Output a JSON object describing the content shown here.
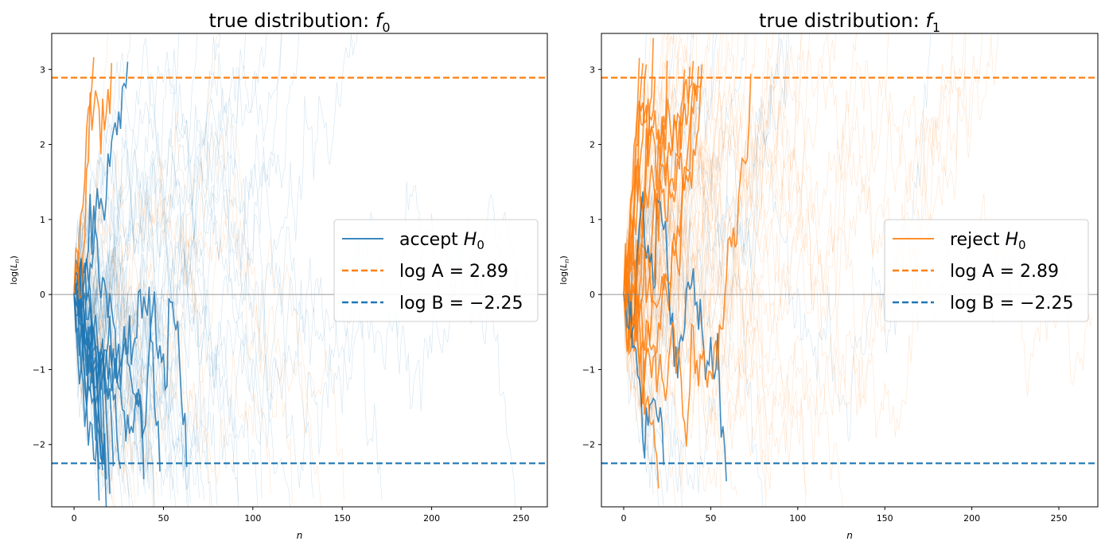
{
  "chart_data": [
    {
      "type": "line",
      "title": "true distribution: f0",
      "title_text": "true distribution: ",
      "title_math": "f",
      "title_sub": "0",
      "xlabel": "n",
      "ylabel": "log(L_n)",
      "xlim": [
        -12.5,
        264.7
      ],
      "ylim": [
        -2.83,
        3.48
      ],
      "xticks": [
        0,
        50,
        100,
        150,
        200,
        250
      ],
      "yticks": [
        -2,
        -1,
        0,
        1,
        2,
        3
      ],
      "grid": false,
      "legend_placement": "center-right",
      "legend": [
        {
          "label": "accept H0",
          "text": "accept ",
          "math": "H",
          "sub": "0",
          "style": "solid",
          "color": "#1f77b4"
        },
        {
          "label": "log A = 2.89",
          "text": "log A = 2.89",
          "style": "dashed",
          "color": "#ff7f0e"
        },
        {
          "label": "log B = -2.25",
          "text": "log B = −2.25",
          "style": "dashed",
          "color": "#1f77b4"
        }
      ],
      "hlines": [
        {
          "y": 2.89,
          "color": "#ff7f0e",
          "style": "dashed"
        },
        {
          "y": -2.25,
          "color": "#1f77b4",
          "style": "dashed"
        },
        {
          "y": 0,
          "color": "#808080",
          "style": "solid"
        }
      ],
      "highlight_color": "#1f77b4",
      "drift": -0.07,
      "max_n": 255
    },
    {
      "type": "line",
      "title": "true distribution: f1",
      "title_text": "true distribution: ",
      "title_math": "f",
      "title_sub": "1",
      "xlabel": "n",
      "ylabel": "log(L_n)",
      "xlim": [
        -12.8,
        272.4
      ],
      "ylim": [
        -2.83,
        3.48
      ],
      "xticks": [
        0,
        50,
        100,
        150,
        200,
        250
      ],
      "yticks": [
        -2,
        -1,
        0,
        1,
        2,
        3
      ],
      "grid": false,
      "legend_placement": "center-right",
      "legend": [
        {
          "label": "reject H0",
          "text": "reject ",
          "math": "H",
          "sub": "0",
          "style": "solid",
          "color": "#ff7f0e"
        },
        {
          "label": "log A = 2.89",
          "text": "log A = 2.89",
          "style": "dashed",
          "color": "#ff7f0e"
        },
        {
          "label": "log B = -2.25",
          "text": "log B = −2.25",
          "style": "dashed",
          "color": "#1f77b4"
        }
      ],
      "hlines": [
        {
          "y": 2.89,
          "color": "#ff7f0e",
          "style": "dashed"
        },
        {
          "y": -2.25,
          "color": "#1f77b4",
          "style": "dashed"
        },
        {
          "y": 0,
          "color": "#808080",
          "style": "solid"
        }
      ],
      "highlight_color": "#ff7f0e",
      "drift": 0.07,
      "max_n": 270
    }
  ]
}
